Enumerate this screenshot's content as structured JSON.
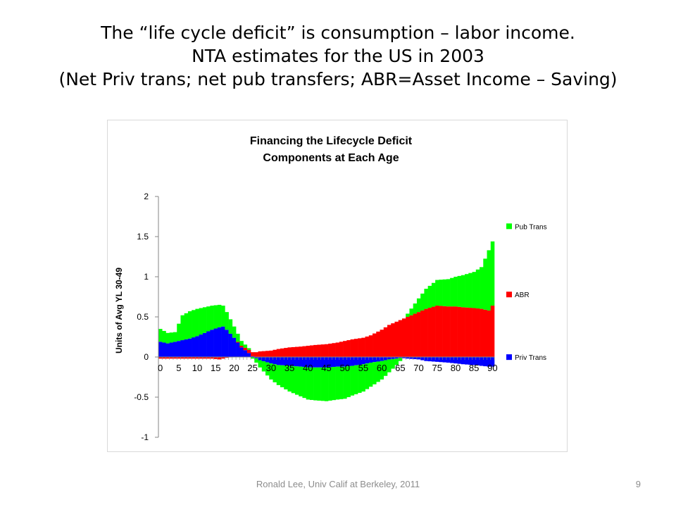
{
  "slide": {
    "title_lines": [
      "The “life cycle deficit” is consumption – labor income.",
      "NTA estimates for the US in 2003",
      "(Net Priv trans; net pub transfers; ABR=Asset Income – Saving)"
    ],
    "footer": "Ronald Lee, Univ Calif at Berkeley, 2011",
    "page_number": "9"
  },
  "chart_data": {
    "type": "area",
    "stacked": true,
    "title_lines": [
      "Financing the Lifecycle Deficit",
      "Components at Each Age"
    ],
    "xlabel": "",
    "ylabel": "Units of Avg YL 30-49",
    "x_ticks": [
      "0",
      "5",
      "10",
      "15",
      "20",
      "25",
      "30",
      "35",
      "40",
      "45",
      "50",
      "55",
      "60",
      "65",
      "70",
      "75",
      "80",
      "85",
      "90"
    ],
    "y_ticks": [
      "2",
      "1.5",
      "1",
      "0.5",
      "0",
      "-0.5",
      "-1"
    ],
    "ylim": [
      -1,
      2
    ],
    "xlim": [
      0,
      90
    ],
    "legend_position": "right",
    "ages_keypoints": [
      0,
      2,
      4,
      6,
      8,
      10,
      12,
      14,
      16,
      17,
      18,
      20,
      22,
      24,
      25,
      27,
      30,
      32,
      35,
      38,
      40,
      42,
      45,
      48,
      50,
      52,
      55,
      57,
      60,
      62,
      64,
      65,
      67,
      70,
      72,
      75,
      78,
      80,
      82,
      85,
      87,
      89,
      90
    ],
    "series": [
      {
        "name": "Pub Trans",
        "color": "#00ff00",
        "values": [
          0.16,
          0.13,
          0.12,
          0.31,
          0.34,
          0.34,
          0.32,
          0.3,
          0.28,
          0.26,
          0.22,
          0.14,
          0.06,
          0.02,
          -0.02,
          -0.09,
          -0.2,
          -0.25,
          -0.32,
          -0.37,
          -0.4,
          -0.41,
          -0.42,
          -0.41,
          -0.4,
          -0.37,
          -0.34,
          -0.3,
          -0.23,
          -0.16,
          -0.08,
          -0.04,
          0.04,
          0.17,
          0.25,
          0.32,
          0.34,
          0.37,
          0.4,
          0.45,
          0.52,
          0.75,
          0.8
        ]
      },
      {
        "name": "ABR",
        "color": "#ff0000",
        "values": [
          -0.02,
          -0.02,
          -0.02,
          -0.02,
          -0.02,
          -0.02,
          -0.02,
          -0.02,
          -0.03,
          -0.02,
          -0.01,
          0.0,
          0.02,
          0.04,
          0.05,
          0.07,
          0.08,
          0.1,
          0.12,
          0.13,
          0.14,
          0.15,
          0.16,
          0.18,
          0.2,
          0.22,
          0.24,
          0.27,
          0.34,
          0.4,
          0.44,
          0.46,
          0.5,
          0.56,
          0.6,
          0.64,
          0.63,
          0.63,
          0.62,
          0.61,
          0.6,
          0.58,
          0.64
        ]
      },
      {
        "name": "Priv Trans",
        "color": "#0000ff",
        "values": [
          0.19,
          0.17,
          0.19,
          0.21,
          0.23,
          0.26,
          0.3,
          0.34,
          0.37,
          0.38,
          0.34,
          0.24,
          0.12,
          0.05,
          0.01,
          -0.04,
          -0.08,
          -0.1,
          -0.11,
          -0.12,
          -0.13,
          -0.13,
          -0.13,
          -0.12,
          -0.12,
          -0.11,
          -0.09,
          -0.07,
          -0.05,
          -0.03,
          -0.02,
          -0.01,
          -0.02,
          -0.03,
          -0.05,
          -0.06,
          -0.07,
          -0.08,
          -0.09,
          -0.1,
          -0.11,
          -0.12,
          -0.12
        ]
      }
    ]
  }
}
